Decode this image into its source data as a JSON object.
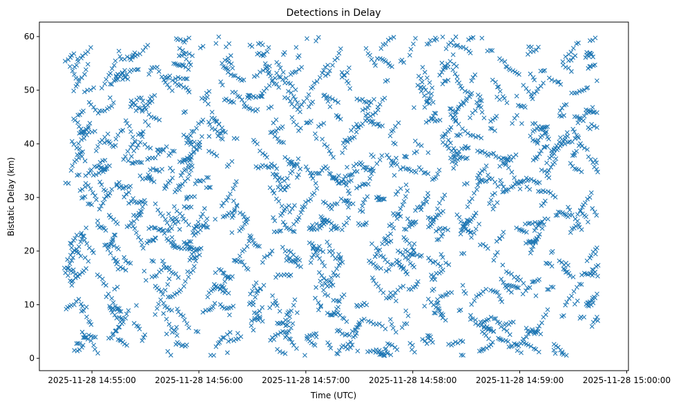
{
  "chart_data": {
    "type": "scatter",
    "title": "Detections in Delay",
    "xlabel": "Time (UTC)",
    "ylabel": "Bistatic Delay (km)",
    "x_ticks": [
      "2025-11-28 14:55:00",
      "2025-11-28 14:56:00",
      "2025-11-28 14:57:00",
      "2025-11-28 14:58:00",
      "2025-11-28 14:59:00",
      "2025-11-28 15:00:00"
    ],
    "x_tick_seconds": [
      0,
      60,
      120,
      180,
      240,
      300
    ],
    "xlim_seconds_from_14_55_00": [
      -29.5,
      301
    ],
    "y_ticks": [
      "0",
      "10",
      "20",
      "30",
      "40",
      "50",
      "60"
    ],
    "y_tick_values": [
      0,
      10,
      20,
      30,
      40,
      50,
      60
    ],
    "ylim": [
      -2.3,
      62.7
    ],
    "grid": false,
    "marker": "x",
    "series": [
      {
        "name": "detections",
        "color": "#1f77b4",
        "approx_count": 3000,
        "x_range_seconds_from_14_55_00": [
          -16,
          284
        ],
        "y_range_km": [
          0.5,
          60
        ]
      }
    ]
  }
}
